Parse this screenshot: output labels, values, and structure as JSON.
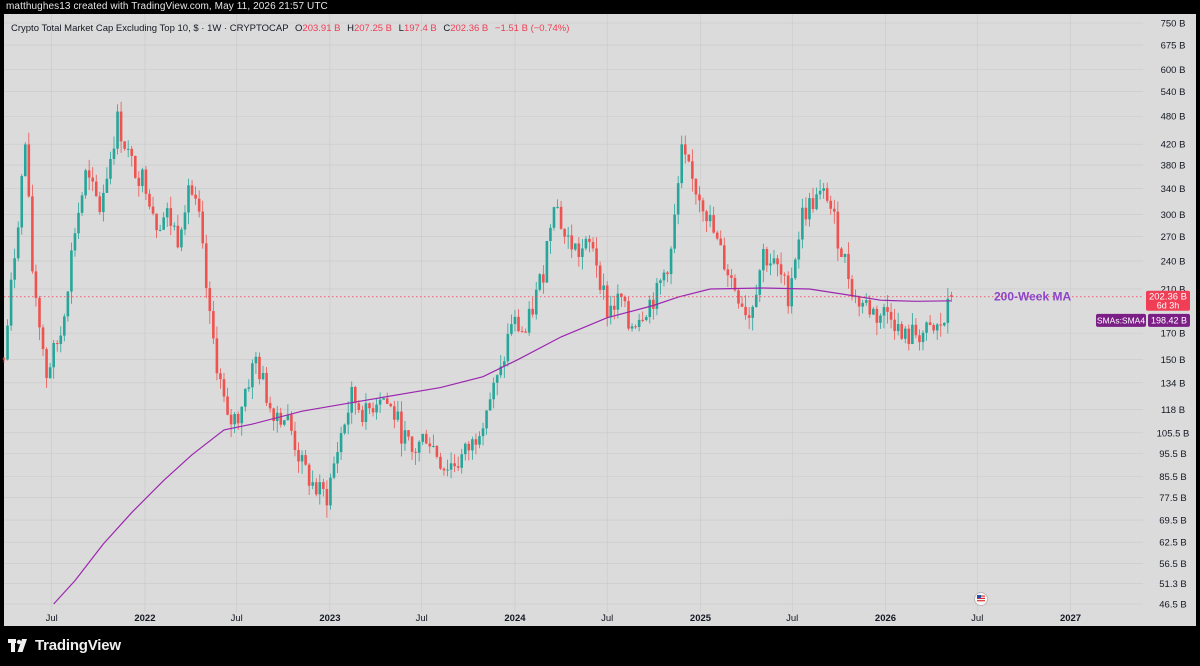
{
  "header": {
    "created_text": "matthughes13 created with TradingView.com, May 11, 2026 21:57 UTC"
  },
  "legend": {
    "title": "Crypto Total Market Cap Excluding Top 10, $ · 1W · CRYPTOCAP",
    "o_label": "O",
    "o_value": "203.91 B",
    "h_label": "H",
    "h_value": "207.25 B",
    "l_label": "L",
    "l_value": "197.4 B",
    "c_label": "C",
    "c_value": "202.36 B",
    "change": "−1.51 B (−0.74%)"
  },
  "footer": {
    "brand": "TradingView"
  },
  "colors": {
    "up": "#26a69a",
    "down": "#ef5350",
    "ma": "#9c27b0",
    "annotation": "#8e44c8",
    "price_tag": "#ef3e55",
    "ma_tag": "#7b1f86",
    "grid": "#c9c9c9",
    "panel": "#dbdbdb"
  },
  "chart_data": {
    "type": "candlestick",
    "title": "Crypto Total Market Cap Excluding Top 10, $ · 1W · CRYPTOCAP",
    "y_scale": "log",
    "ylim": [
      "46.5B",
      "750B"
    ],
    "y_ticks": [
      {
        "label": "750 B",
        "value": 750
      },
      {
        "label": "675 B",
        "value": 675
      },
      {
        "label": "600 B",
        "value": 600
      },
      {
        "label": "540 B",
        "value": 540
      },
      {
        "label": "480 B",
        "value": 480
      },
      {
        "label": "420 B",
        "value": 420
      },
      {
        "label": "380 B",
        "value": 380
      },
      {
        "label": "340 B",
        "value": 340
      },
      {
        "label": "300 B",
        "value": 300
      },
      {
        "label": "270 B",
        "value": 270
      },
      {
        "label": "240 B",
        "value": 240
      },
      {
        "label": "210 B",
        "value": 210
      },
      {
        "label": "170 B",
        "value": 170
      },
      {
        "label": "150 B",
        "value": 150
      },
      {
        "label": "134 B",
        "value": 134
      },
      {
        "label": "118 B",
        "value": 118
      },
      {
        "label": "105.5 B",
        "value": 105.5
      },
      {
        "label": "95.5 B",
        "value": 95.5
      },
      {
        "label": "85.5 B",
        "value": 85.5
      },
      {
        "label": "77.5 B",
        "value": 77.5
      },
      {
        "label": "69.5 B",
        "value": 69.5
      },
      {
        "label": "62.5 B",
        "value": 62.5
      },
      {
        "label": "56.5 B",
        "value": 56.5
      },
      {
        "label": "51.3 B",
        "value": 51.3
      },
      {
        "label": "46.5 B",
        "value": 46.5
      }
    ],
    "x_ticks": [
      {
        "label": "Jul",
        "date": "2021-07-01",
        "bold": false
      },
      {
        "label": "2022",
        "date": "2022-01-01",
        "bold": true
      },
      {
        "label": "Jul",
        "date": "2022-07-01",
        "bold": false
      },
      {
        "label": "2023",
        "date": "2023-01-01",
        "bold": true
      },
      {
        "label": "Jul",
        "date": "2023-07-01",
        "bold": false
      },
      {
        "label": "2024",
        "date": "2024-01-01",
        "bold": true
      },
      {
        "label": "Jul",
        "date": "2024-07-01",
        "bold": false
      },
      {
        "label": "2025",
        "date": "2025-01-01",
        "bold": true
      },
      {
        "label": "Jul",
        "date": "2025-07-01",
        "bold": false
      },
      {
        "label": "2026",
        "date": "2026-01-01",
        "bold": true
      },
      {
        "label": "Jul",
        "date": "2026-07-01",
        "bold": false
      },
      {
        "label": "2027",
        "date": "2027-01-01",
        "bold": true
      }
    ],
    "x_range": [
      "2021-03-29",
      "2027-05-24"
    ],
    "price_anchors": [
      [
        "2021-03-29",
        150
      ],
      [
        "2021-04-12",
        210
      ],
      [
        "2021-05-10",
        420
      ],
      [
        "2021-05-24",
        230
      ],
      [
        "2021-06-21",
        140
      ],
      [
        "2021-07-19",
        170
      ],
      [
        "2021-08-16",
        280
      ],
      [
        "2021-09-06",
        360
      ],
      [
        "2021-10-04",
        310
      ],
      [
        "2021-11-08",
        470
      ],
      [
        "2021-12-06",
        380
      ],
      [
        "2022-01-03",
        350
      ],
      [
        "2022-01-24",
        290
      ],
      [
        "2022-02-14",
        300
      ],
      [
        "2022-03-07",
        270
      ],
      [
        "2022-03-28",
        350
      ],
      [
        "2022-04-18",
        290
      ],
      [
        "2022-05-09",
        180
      ],
      [
        "2022-06-13",
        110
      ],
      [
        "2022-07-04",
        115
      ],
      [
        "2022-07-18",
        130
      ],
      [
        "2022-08-08",
        150
      ],
      [
        "2022-09-05",
        120
      ],
      [
        "2022-10-10",
        112
      ],
      [
        "2022-11-07",
        90
      ],
      [
        "2022-12-05",
        80
      ],
      [
        "2022-12-26",
        78
      ],
      [
        "2023-01-23",
        105
      ],
      [
        "2023-02-13",
        125
      ],
      [
        "2023-03-13",
        115
      ],
      [
        "2023-04-10",
        128
      ],
      [
        "2023-05-08",
        115
      ],
      [
        "2023-06-12",
        95
      ],
      [
        "2023-07-10",
        105
      ],
      [
        "2023-08-14",
        90
      ],
      [
        "2023-09-11",
        92
      ],
      [
        "2023-10-09",
        100
      ],
      [
        "2023-11-06",
        120
      ],
      [
        "2023-12-04",
        140
      ],
      [
        "2023-12-25",
        180
      ],
      [
        "2024-01-22",
        170
      ],
      [
        "2024-02-26",
        230
      ],
      [
        "2024-03-18",
        330
      ],
      [
        "2024-04-08",
        270
      ],
      [
        "2024-05-06",
        250
      ],
      [
        "2024-06-03",
        260
      ],
      [
        "2024-07-01",
        190
      ],
      [
        "2024-07-29",
        200
      ],
      [
        "2024-08-12",
        175
      ],
      [
        "2024-09-09",
        190
      ],
      [
        "2024-10-07",
        205
      ],
      [
        "2024-11-04",
        250
      ],
      [
        "2024-11-25",
        400
      ],
      [
        "2024-12-16",
        350
      ],
      [
        "2025-01-06",
        320
      ],
      [
        "2025-02-03",
        260
      ],
      [
        "2025-03-03",
        220
      ],
      [
        "2025-04-07",
        185
      ],
      [
        "2025-05-05",
        250
      ],
      [
        "2025-06-02",
        230
      ],
      [
        "2025-06-23",
        205
      ],
      [
        "2025-07-21",
        300
      ],
      [
        "2025-08-11",
        320
      ],
      [
        "2025-09-08",
        330
      ],
      [
        "2025-09-29",
        270
      ],
      [
        "2025-10-13",
        240
      ],
      [
        "2025-11-03",
        200
      ],
      [
        "2025-11-24",
        195
      ],
      [
        "2025-12-15",
        185
      ],
      [
        "2026-01-12",
        190
      ],
      [
        "2026-02-02",
        165
      ],
      [
        "2026-03-02",
        170
      ],
      [
        "2026-04-06",
        170
      ],
      [
        "2026-04-27",
        180
      ],
      [
        "2026-05-11",
        202.36
      ]
    ],
    "series": [
      {
        "name": "200-Week MA",
        "indicator_label": "SMAs:SMA4",
        "last_value": "198.42 B",
        "points": [
          [
            "2021-07-05",
            46.5
          ],
          [
            "2021-08-16",
            52
          ],
          [
            "2021-10-11",
            62
          ],
          [
            "2021-12-06",
            72
          ],
          [
            "2022-02-07",
            84
          ],
          [
            "2022-04-04",
            95
          ],
          [
            "2022-06-06",
            107
          ],
          [
            "2022-08-01",
            110
          ],
          [
            "2022-11-07",
            117
          ],
          [
            "2023-03-06",
            123
          ],
          [
            "2023-08-07",
            131
          ],
          [
            "2023-10-30",
            138
          ],
          [
            "2024-01-08",
            150
          ],
          [
            "2024-04-01",
            167
          ],
          [
            "2024-07-01",
            183
          ],
          [
            "2024-09-30",
            194
          ],
          [
            "2024-11-18",
            202
          ],
          [
            "2025-01-20",
            210
          ],
          [
            "2025-05-05",
            211
          ],
          [
            "2025-08-04",
            210
          ],
          [
            "2025-11-03",
            203
          ],
          [
            "2025-12-22",
            199
          ],
          [
            "2026-03-02",
            198
          ],
          [
            "2026-05-11",
            198.42
          ]
        ]
      }
    ],
    "last_price": {
      "value": 202.36,
      "label": "202.36 B",
      "countdown": "6d 3h"
    },
    "annotation": "200-Week MA"
  }
}
